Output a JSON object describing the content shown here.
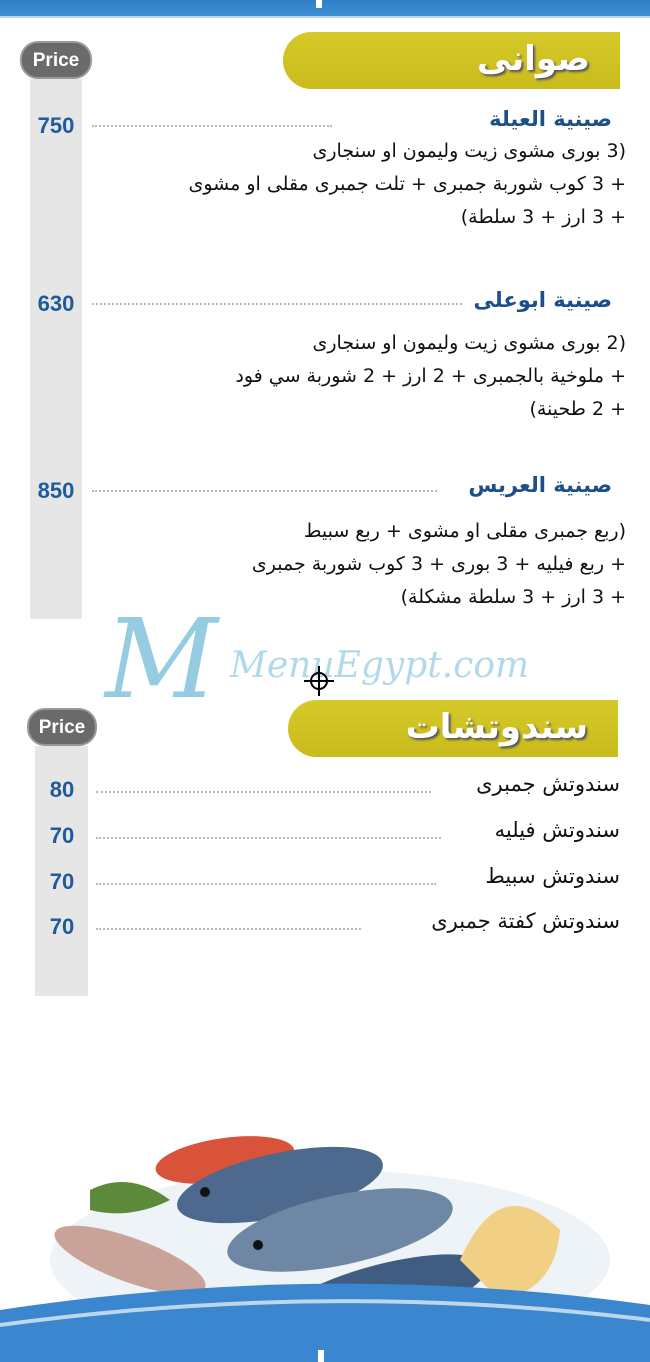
{
  "header": {
    "color": "#3a8ad0"
  },
  "watermark": "MenuEgypt.com",
  "sections": [
    {
      "title": "صوانى",
      "price_label": "Price",
      "items": [
        {
          "name": "صينية العيلة",
          "price": "750",
          "description": "(3 بورى مشوى زيت وليمون او سنجارى\n+ 3 كوب شوربة جمبرى + تلت جمبرى مقلى او مشوى\n+ 3 ارز + 3 سلطة)"
        },
        {
          "name": "صينية ابوعلى",
          "price": "630",
          "description": "(2 بورى مشوى زيت وليمون او سنجارى\n+ ملوخية بالجمبرى + 2 ارز + 2 شوربة سي فود\n+ 2 طحينة)"
        },
        {
          "name": "صينية العريس",
          "price": "850",
          "description": "(ربع جمبرى مقلى او مشوى + ربع سبيط\n+ ربع فيليه + 3 بورى + 3 كوب شوربة جمبرى\n+ 3 ارز + 3 سلطة مشكلة)"
        }
      ]
    },
    {
      "title": "سندوتشات",
      "price_label": "Price",
      "items": [
        {
          "name": "سندوتش جمبرى",
          "price": "80"
        },
        {
          "name": "سندوتش فيليه",
          "price": "70"
        },
        {
          "name": "سندوتش سبيط",
          "price": "70"
        },
        {
          "name": "سندوتش  كفتة جمبرى",
          "price": "70"
        }
      ]
    }
  ],
  "colors": {
    "banner": "#cfc122",
    "price": "#1f5b9c",
    "item_name": "#1d4f8a",
    "pill": "#6a6a6a"
  }
}
